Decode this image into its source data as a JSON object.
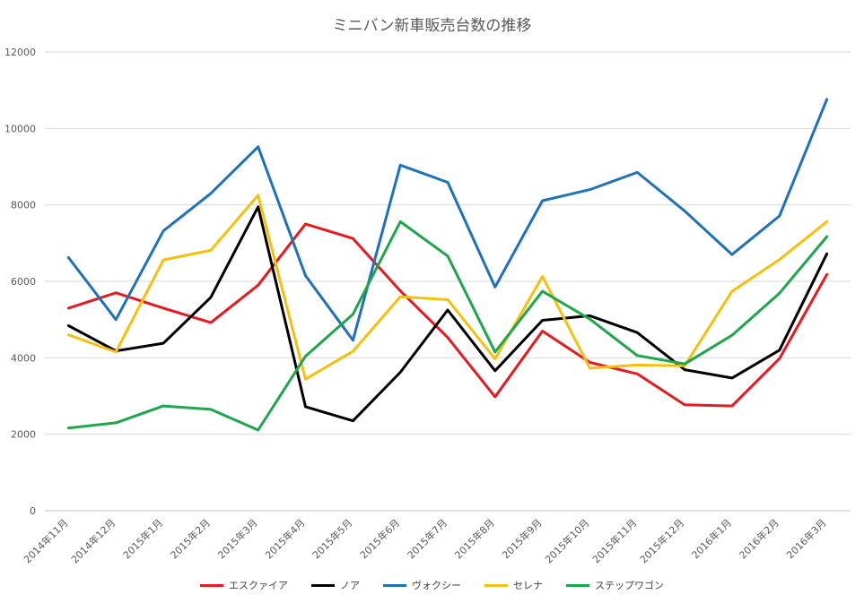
{
  "chart_data": {
    "type": "line",
    "title": "ミニバン新車販売台数の推移",
    "categories": [
      "2014年11月",
      "2014年12月",
      "2015年1月",
      "2015年2月",
      "2015年3月",
      "2015年4月",
      "2015年5月",
      "2015年6月",
      "2015年7月",
      "2015年8月",
      "2015年9月",
      "2015年10月",
      "2015年11月",
      "2015年12月",
      "2016年1月",
      "2016年2月",
      "2016年3月"
    ],
    "ylim": [
      0,
      12000
    ],
    "yticks": [
      "0",
      "2000",
      "4000",
      "6000",
      "8000",
      "10000",
      "12000"
    ],
    "grid": true,
    "legend_position": "bottom",
    "series": [
      {
        "name": "エスクァイア",
        "color": "#e8191f",
        "values": [
          5300,
          5700,
          5300,
          4920,
          5900,
          7500,
          7120,
          5750,
          4530,
          2980,
          4700,
          3880,
          3580,
          2770,
          2740,
          3980,
          6180
        ]
      },
      {
        "name": "ノア",
        "color": "#000000",
        "values": [
          4840,
          4180,
          4380,
          5580,
          7950,
          2720,
          2350,
          3620,
          5250,
          3660,
          4980,
          5100,
          4660,
          3690,
          3470,
          4200,
          6720
        ]
      },
      {
        "name": "ヴォクシー",
        "color": "#1f72b8",
        "values": [
          6620,
          5000,
          7320,
          8300,
          9520,
          6150,
          4460,
          9040,
          8590,
          5850,
          8110,
          8400,
          8850,
          7840,
          6700,
          7710,
          10760
        ]
      },
      {
        "name": "セレナ",
        "color": "#f5c10e",
        "values": [
          4600,
          4150,
          6560,
          6810,
          8250,
          3440,
          4170,
          5600,
          5520,
          3970,
          6130,
          3730,
          3810,
          3790,
          5740,
          6570,
          7560
        ]
      },
      {
        "name": "ステップワゴン",
        "color": "#1ea64a",
        "values": [
          2160,
          2300,
          2740,
          2650,
          2110,
          4040,
          5140,
          7560,
          6660,
          4150,
          5740,
          5010,
          4060,
          3840,
          4590,
          5690,
          7170
        ]
      }
    ]
  }
}
